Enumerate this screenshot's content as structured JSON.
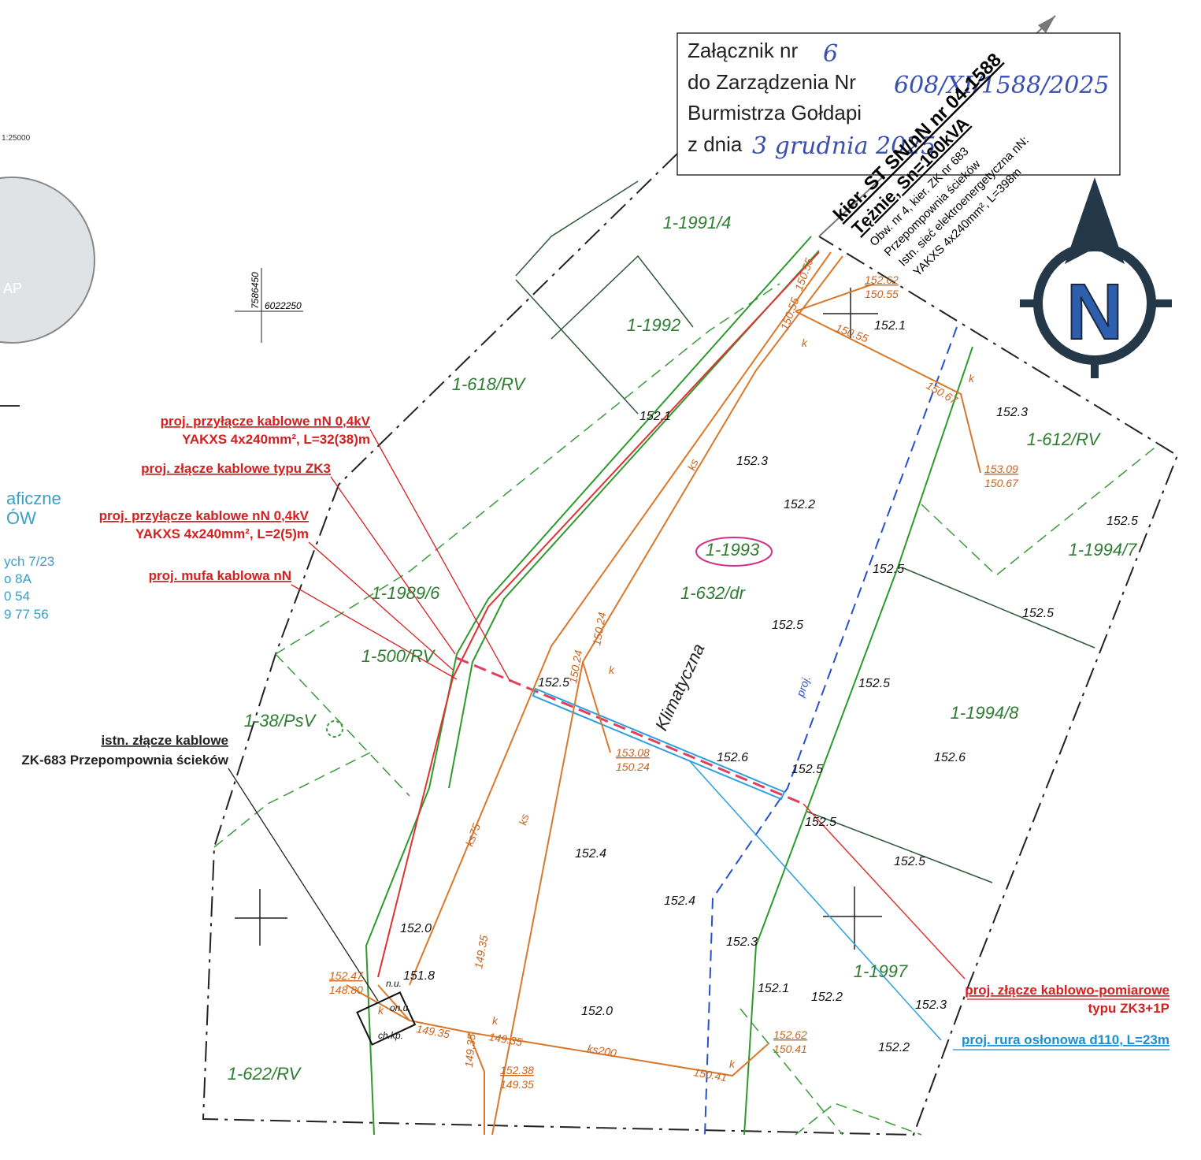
{
  "attachment": {
    "line1": "Załącznik nr",
    "number": "6",
    "line2": "do Zarządzenia Nr",
    "order_number": "608/XI/1588/2025",
    "line3": "Burmistrza Gołdapi",
    "line4": "z dnia",
    "date": "3 grudnia 2025"
  },
  "scale_label": "1:25000",
  "globe_label": "AP",
  "side_text": [
    "aficzne",
    "ÓW",
    "ych 7/23",
    "o 8A",
    "0 54",
    "9 77 56"
  ],
  "coordinates": [
    "7586450",
    "6022250"
  ],
  "cable_route": [
    "kier. ST SN/nN nr 04-1588",
    "Tężnie, Sn=160kVA",
    "Obw. nr 4, kier. ZK nr 683",
    "Przepompownia ścieków",
    "Istn. sieć elektroenergetyczna nN:",
    "YAKXS 4x240mm², L=398m"
  ],
  "callouts": [
    {
      "lines": [
        "proj. przyłącze kablowe nN 0,4kV",
        "YAKXS 4x240mm², L=32(38)m"
      ]
    },
    {
      "lines": [
        "proj. złącze kablowe typu ZK3"
      ]
    },
    {
      "lines": [
        "proj. przyłącze kablowe nN 0,4kV",
        "YAKXS 4x240mm², L=2(5)m"
      ]
    },
    {
      "lines": [
        "proj. mufa kablowa nN"
      ]
    },
    {
      "lines": [
        "istn. złącze kablowe",
        "ZK-683 Przepompownia ścieków"
      ]
    },
    {
      "lines": [
        "proj. złącze kablowo-pomiarowe",
        "typu ZK3+1P"
      ]
    },
    {
      "lines": [
        "proj. rura osłonowa d110, L=23m"
      ]
    }
  ],
  "parcels": [
    "1-1991/4",
    "1-1992",
    "1-618/RV",
    "1-612/RV",
    "1-1993",
    "1-1994/7",
    "1-1989/6",
    "1-632/dr",
    "1-500/RV",
    "1-38/PsV",
    "1-1994/8",
    "1-1997",
    "1-622/RV"
  ],
  "street": "Klimatyczna",
  "projected_road": "proj.",
  "elevations": [
    "152.1",
    "152.1",
    "152.3",
    "152.3",
    "152.2",
    "152.5",
    "152.5",
    "152.5",
    "152.5",
    "152.5",
    "152.6",
    "152.5",
    "152.6",
    "152.5",
    "152.5",
    "152.4",
    "152.4",
    "152.0",
    "152.3",
    "151.8",
    "152.1",
    "152.2",
    "152.3",
    "152.0",
    "152.2",
    "152.5"
  ],
  "fractions": [
    {
      "top": "152.62",
      "bottom": "150.55"
    },
    {
      "top": "153.09",
      "bottom": "150.67"
    },
    {
      "top": "153.08",
      "bottom": "150.24"
    },
    {
      "top": "152.47",
      "bottom": "148.80"
    },
    {
      "top": "152.38",
      "bottom": "149.35"
    },
    {
      "top": "152.62",
      "bottom": "150.41"
    }
  ],
  "network_labels": [
    "150.55",
    "150.55",
    "150.55",
    "150.67",
    "150.24",
    "150.24",
    "149.35",
    "149.35",
    "149.35",
    "149.35",
    "150.41",
    "ks",
    "k",
    "k",
    "k",
    "k",
    "k",
    "k",
    "ks",
    "ks75",
    "ks200"
  ],
  "site_labels": [
    "n.u.",
    "on.u.",
    "ch.kp."
  ]
}
